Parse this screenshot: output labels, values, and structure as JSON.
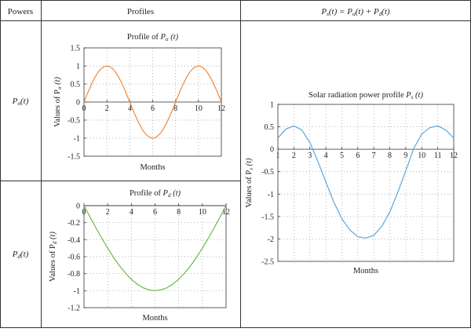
{
  "table": {
    "headers": {
      "powers": "Powers",
      "profiles": "Profiles",
      "equation": {
        "lhs": "P",
        "lhs_sub": "s",
        "lhs_arg": "(t) = ",
        "term1": "P",
        "term1_sub": "α",
        "term1_arg": "(t) + ",
        "term2": "P",
        "term2_sub": "d",
        "term2_arg": "(t)"
      }
    },
    "row_labels": [
      {
        "main": "P",
        "sub": "α",
        "arg": "(t)"
      },
      {
        "main": "P",
        "sub": "d",
        "arg": "(t)"
      }
    ]
  },
  "chart_data": [
    {
      "id": "alpha",
      "type": "line",
      "title_prefix": "Profile of ",
      "title_main": "P",
      "title_sub": "α",
      "title_arg": " (t)",
      "xlabel": "Months",
      "ylabel_prefix": "Values of  P",
      "ylabel_sub": "α",
      "ylabel_arg": " (t)",
      "xlim": [
        0,
        12
      ],
      "ylim": [
        -1.5,
        1.5
      ],
      "xticks": [
        0,
        2,
        4,
        6,
        8,
        10,
        12
      ],
      "yticks": [
        1.5,
        1,
        0.5,
        0,
        -0.5,
        -1,
        -1.5
      ],
      "x_axis_at_zero": false,
      "grid": true,
      "color": "#f08a3c",
      "series": [
        {
          "x": [
            0,
            0.25,
            0.5,
            0.75,
            1,
            1.25,
            1.5,
            1.75,
            2,
            2.25,
            2.5,
            2.75,
            3,
            3.25,
            3.5,
            3.75,
            4,
            4.25,
            4.5,
            4.75,
            5,
            5.25,
            5.5,
            5.75,
            6,
            6.25,
            6.5,
            6.75,
            7,
            7.25,
            7.5,
            7.75,
            8,
            8.25,
            8.5,
            8.75,
            9,
            9.25,
            9.5,
            9.75,
            10,
            10.25,
            10.5,
            10.75,
            11,
            11.25,
            11.5,
            11.75,
            12
          ],
          "y": [
            0,
            0.195,
            0.383,
            0.556,
            0.707,
            0.831,
            0.924,
            0.981,
            1,
            0.981,
            0.924,
            0.831,
            0.707,
            0.556,
            0.383,
            0.195,
            0,
            -0.195,
            -0.383,
            -0.556,
            -0.707,
            -0.831,
            -0.924,
            -0.981,
            -1,
            -0.981,
            -0.924,
            -0.831,
            -0.707,
            -0.556,
            -0.383,
            -0.195,
            0,
            0.195,
            0.383,
            0.556,
            0.707,
            0.831,
            0.924,
            0.981,
            1,
            0.981,
            0.924,
            0.831,
            0.707,
            0.556,
            0.383,
            0.195,
            0
          ]
        }
      ]
    },
    {
      "id": "d",
      "type": "line",
      "title_prefix": "Profile of ",
      "title_main": "P",
      "title_sub": "d",
      "title_arg": " (t)",
      "xlabel": "Months",
      "ylabel_prefix": "Values of  P",
      "ylabel_sub": "d",
      "ylabel_arg": " (t)",
      "xlim": [
        0,
        12
      ],
      "ylim": [
        -1.2,
        0
      ],
      "xticks": [
        0,
        2,
        4,
        6,
        8,
        10,
        12
      ],
      "yticks": [
        0,
        -0.2,
        -0.4,
        -0.6,
        -0.8,
        -1,
        -1.2
      ],
      "x_axis_at_zero": true,
      "grid": true,
      "color": "#6fba4a",
      "series": [
        {
          "x": [
            0,
            0.5,
            1,
            1.5,
            2,
            2.5,
            3,
            3.5,
            4,
            4.5,
            5,
            5.5,
            6,
            6.5,
            7,
            7.5,
            8,
            8.5,
            9,
            9.5,
            10,
            10.5,
            11,
            11.5,
            12
          ],
          "y": [
            0,
            -0.131,
            -0.259,
            -0.383,
            -0.5,
            -0.609,
            -0.707,
            -0.793,
            -0.866,
            -0.924,
            -0.966,
            -0.991,
            -1,
            -0.991,
            -0.966,
            -0.924,
            -0.866,
            -0.793,
            -0.707,
            -0.609,
            -0.5,
            -0.383,
            -0.259,
            -0.131,
            0
          ]
        }
      ]
    },
    {
      "id": "s",
      "type": "line",
      "title_prefix": "Solar radiation power profile ",
      "title_main": "P",
      "title_sub": "s",
      "title_arg": " (t)",
      "xlabel": "Months",
      "ylabel_prefix": "Values of P",
      "ylabel_sub": "s",
      "ylabel_arg": " (t)",
      "xlim": [
        1,
        12
      ],
      "ylim": [
        -2.5,
        1
      ],
      "xticks": [
        1,
        2,
        3,
        4,
        5,
        6,
        7,
        8,
        9,
        10,
        11,
        12
      ],
      "yticks": [
        1,
        0.5,
        0,
        -0.5,
        -1,
        -1.5,
        -2,
        -2.5
      ],
      "x_axis_at_zero": true,
      "grid": true,
      "color": "#5aa6df",
      "series": [
        {
          "x": [
            1,
            1.5,
            2,
            2.5,
            3,
            3.5,
            4,
            4.5,
            5,
            5.5,
            6,
            6.5,
            7,
            7.5,
            8,
            8.5,
            9,
            9.5,
            10,
            10.5,
            11,
            11.5,
            12
          ],
          "y": [
            0.25,
            0.45,
            0.52,
            0.43,
            0.15,
            -0.27,
            -0.73,
            -1.18,
            -1.55,
            -1.8,
            -1.95,
            -1.98,
            -1.92,
            -1.72,
            -1.4,
            -0.96,
            -0.48,
            0.02,
            0.34,
            0.48,
            0.52,
            0.43,
            0.25
          ]
        }
      ]
    }
  ]
}
